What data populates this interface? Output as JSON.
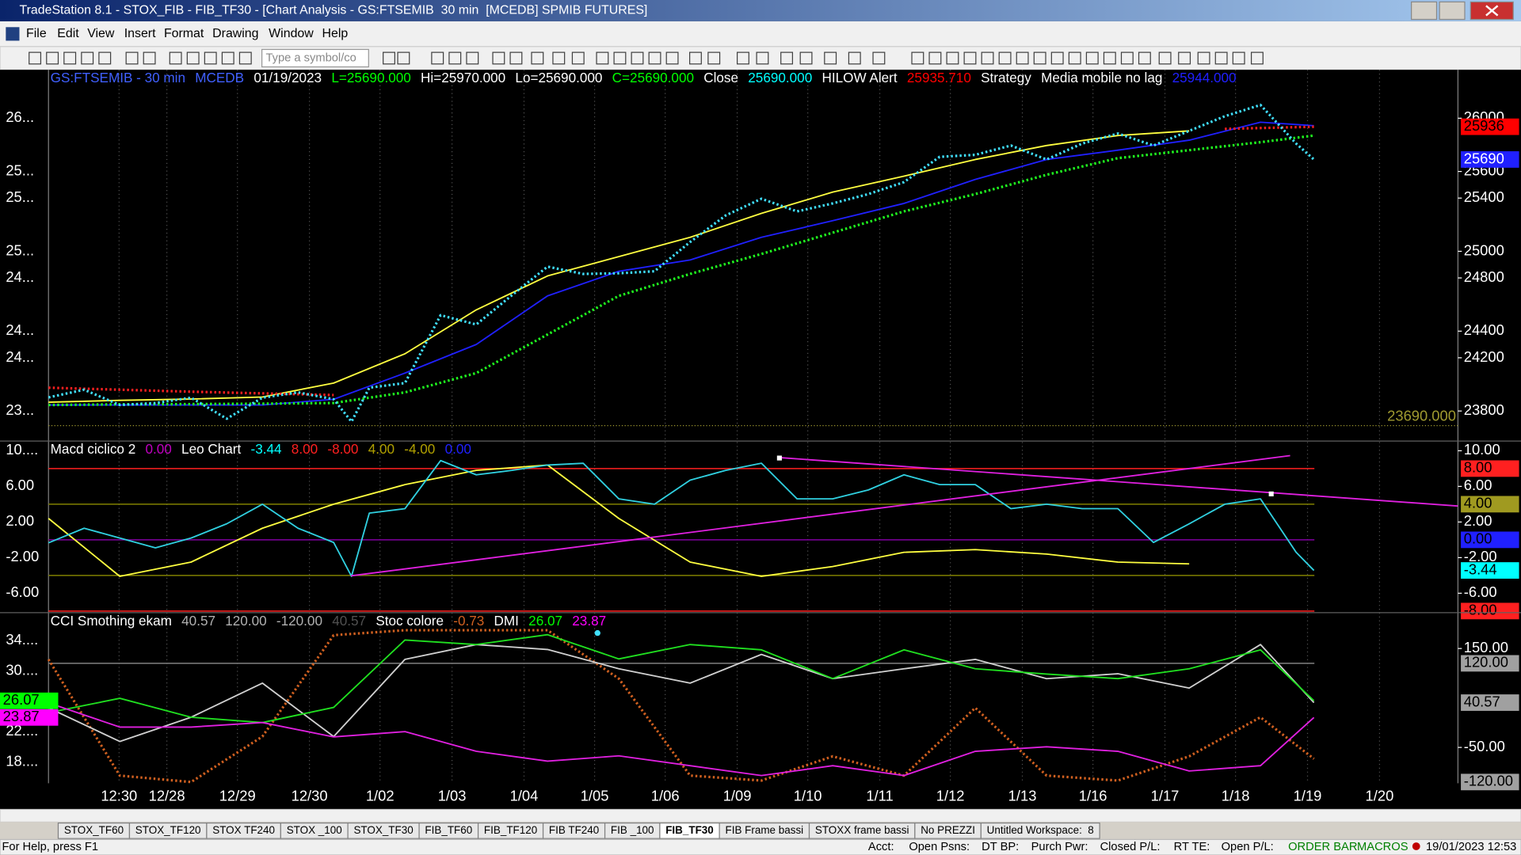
{
  "window": {
    "title": "TradeStation 8.1 - STOX_FIB - FIB_TF30 - [Chart Analysis - GS:FTSEMIB  30 min  [MCEDB] SPMIB FUTURES]",
    "menu": [
      "File",
      "Edit",
      "View",
      "Insert",
      "Format",
      "Drawing",
      "Window",
      "Help"
    ],
    "symbol_box": "Type a symbol/co"
  },
  "chart_data": [
    {
      "type": "line",
      "header": [
        {
          "text": "GS:FTSEMIB - 30 min",
          "color": "#4060ff"
        },
        {
          "text": "MCEDB",
          "color": "#4060ff"
        },
        {
          "text": "01/19/2023",
          "color": "#ffffff"
        },
        {
          "text": "L=25690.000",
          "color": "#00ff00"
        },
        {
          "text": "Hi=25970.000",
          "color": "#ffffff"
        },
        {
          "text": "Lo=25690.000",
          "color": "#ffffff"
        },
        {
          "text": "C=25690.000",
          "color": "#00ff00"
        },
        {
          "text": "Close",
          "color": "#ffffff"
        },
        {
          "text": "25690.000",
          "color": "#00ffff"
        },
        {
          "text": "HILOW Alert",
          "color": "#ffffff"
        },
        {
          "text": "25935.710",
          "color": "#ff0000"
        },
        {
          "text": "Strategy",
          "color": "#ffffff"
        },
        {
          "text": "Media mobile no lag",
          "color": "#ffffff"
        },
        {
          "text": "25944.000",
          "color": "#2020ff"
        }
      ],
      "ylim": [
        23574,
        26364
      ],
      "yticks": [
        26000,
        25600,
        25400,
        25000,
        24800,
        24400,
        24200,
        23800
      ],
      "left_ticks": [
        {
          "value": 26000,
          "label": "26..."
        },
        {
          "value": 25600,
          "label": "25..."
        },
        {
          "value": 25400,
          "label": "25..."
        },
        {
          "value": 25000,
          "label": "25..."
        },
        {
          "value": 24800,
          "label": "24..."
        },
        {
          "value": 24400,
          "label": "24..."
        },
        {
          "value": 24200,
          "label": "24..."
        },
        {
          "value": 23800,
          "label": "23..."
        }
      ],
      "boxes": [
        {
          "value": 25936,
          "label": "25936",
          "color": "#ff0000",
          "text_color": "#000000"
        },
        {
          "value": 25690,
          "label": "25690",
          "color": "#2020ff",
          "text_color": "#ffffff"
        }
      ],
      "low_line": {
        "value": 23690,
        "label": "23690.000",
        "color": "#a09a30"
      },
      "series": [
        {
          "color": "#ffff40",
          "style": "line",
          "x": [
            0,
            1,
            2,
            3,
            4,
            5,
            6,
            7,
            8,
            9,
            10,
            11,
            12,
            13,
            14,
            15,
            16
          ],
          "values": [
            23866,
            23880,
            23890,
            23905,
            24010,
            24230,
            24560,
            24815,
            24960,
            25105,
            25285,
            25445,
            25565,
            25690,
            25795,
            25870,
            25905
          ]
        },
        {
          "color": "#2020ff",
          "style": "line",
          "x": [
            0,
            1,
            2,
            3,
            4,
            5,
            6,
            7,
            8,
            9,
            10,
            11,
            12,
            13,
            14,
            15,
            16,
            17,
            17.75
          ],
          "values": [
            23845,
            23845,
            23845,
            23845,
            23888,
            24085,
            24300,
            24665,
            24850,
            24935,
            25105,
            25230,
            25360,
            25540,
            25690,
            25760,
            25835,
            25970,
            25944
          ]
        },
        {
          "color": "#20ff20",
          "style": "dots",
          "x": [
            0,
            1,
            2,
            3,
            4,
            5,
            6,
            7,
            8,
            9,
            10,
            11,
            12,
            13,
            14,
            15,
            16,
            17,
            17.75
          ],
          "values": [
            23845,
            23850,
            23852,
            23855,
            23860,
            23940,
            24085,
            24375,
            24665,
            24830,
            24980,
            25140,
            25300,
            25430,
            25575,
            25700,
            25760,
            25820,
            25870
          ]
        },
        {
          "color": "#ff2020",
          "style": "dots",
          "x": [
            0,
            2,
            4,
            4.1,
            16.5,
            17.75
          ],
          "values": [
            23975,
            23945,
            23920,
            null,
            25920,
            25936
          ]
        },
        {
          "color": "#40e0ff",
          "style": "dots",
          "x": [
            0,
            0.5,
            1,
            1.5,
            2,
            2.5,
            3,
            3.5,
            4,
            4.25,
            4.5,
            5,
            5.5,
            6,
            6.5,
            7,
            7.5,
            8,
            8.5,
            9,
            9.5,
            10,
            10.5,
            11,
            11.5,
            12,
            12.5,
            13,
            13.5,
            14,
            14.5,
            15,
            15.5,
            16,
            16.5,
            17,
            17.5,
            17.75
          ],
          "values": [
            23902,
            23960,
            23845,
            23860,
            23900,
            23742,
            23900,
            23940,
            23888,
            23720,
            23975,
            24010,
            24520,
            24450,
            24670,
            24885,
            24830,
            24835,
            24850,
            25070,
            25270,
            25395,
            25300,
            25360,
            25430,
            25520,
            25710,
            25725,
            25795,
            25690,
            25810,
            25885,
            25795,
            25905,
            26015,
            26100,
            25810,
            25690
          ]
        }
      ]
    },
    {
      "type": "line",
      "header": [
        {
          "text": "Macd ciclico 2",
          "color": "#ffffff"
        },
        {
          "text": "0.00",
          "color": "#c000c0"
        },
        {
          "text": "Leo Chart",
          "color": "#ffffff"
        },
        {
          "text": "-3.44",
          "color": "#00ffff"
        },
        {
          "text": "8.00",
          "color": "#ff2020"
        },
        {
          "text": "-8.00",
          "color": "#ff2020"
        },
        {
          "text": "4.00",
          "color": "#b0a000"
        },
        {
          "text": "-4.00",
          "color": "#b0a000"
        },
        {
          "text": "0.00",
          "color": "#2020ff"
        }
      ],
      "ylim": [
        -8.18,
        11.09
      ],
      "yticks": [
        {
          "value": 10,
          "label": "10.00"
        },
        {
          "value": 6,
          "label": "6.00"
        },
        {
          "value": 2,
          "label": "2.00"
        },
        {
          "value": -2,
          "label": "-2.00"
        },
        {
          "value": -6,
          "label": "-6.00"
        }
      ],
      "left_ticks": [
        {
          "value": 10,
          "label": "10...."
        },
        {
          "value": 6,
          "label": "6.00"
        },
        {
          "value": 2,
          "label": "2.00"
        },
        {
          "value": -2,
          "label": "-2.00"
        },
        {
          "value": -6,
          "label": "-6.00"
        }
      ],
      "levels": [
        {
          "value": 8,
          "color": "#ff2020"
        },
        {
          "value": 4,
          "color": "#808000"
        },
        {
          "value": 0,
          "color": "#8000a0"
        },
        {
          "value": -4,
          "color": "#808000"
        },
        {
          "value": -8,
          "color": "#ff2020"
        }
      ],
      "boxes": [
        {
          "value": 8,
          "label": "8.00",
          "color": "#ff2020",
          "text_color": "#000000"
        },
        {
          "value": 4,
          "label": "4.00",
          "color": "#a09a20",
          "text_color": "#000000"
        },
        {
          "value": 0,
          "label": "0.00",
          "color": "#2020ff",
          "text_color": "#000000"
        },
        {
          "value": -3.44,
          "label": "-3.44",
          "color": "#00ffff",
          "text_color": "#000000"
        },
        {
          "value": -8,
          "label": "-8.00",
          "color": "#ff2020",
          "text_color": "#000000"
        }
      ],
      "series": [
        {
          "color": "#ffff40",
          "style": "line",
          "x": [
            0,
            1,
            2,
            3,
            4,
            5,
            6,
            7,
            8,
            9,
            10,
            11,
            12,
            13,
            14,
            15,
            16
          ],
          "values": [
            2.4,
            -4.1,
            -2.5,
            1.3,
            4.0,
            6.2,
            7.8,
            8.4,
            2.4,
            -2.5,
            -4.1,
            -3.0,
            -1.4,
            -1.1,
            -1.6,
            -2.5,
            -2.7
          ]
        },
        {
          "color": "#30d0e0",
          "style": "line",
          "x": [
            0,
            0.5,
            1,
            1.5,
            2,
            2.5,
            3,
            3.5,
            4,
            4.25,
            4.5,
            5,
            5.5,
            6,
            6.5,
            7,
            7.5,
            8,
            8.5,
            9,
            9.5,
            10,
            10.5,
            11,
            11.5,
            12,
            12.5,
            13,
            13.5,
            14,
            14.5,
            15,
            15.5,
            16,
            16.5,
            17,
            17.5,
            17.75
          ],
          "values": [
            -0.34,
            1.3,
            0.2,
            -0.9,
            0.2,
            1.8,
            4.0,
            1.3,
            -0.3,
            -4.1,
            3.0,
            3.5,
            8.9,
            7.3,
            7.8,
            8.4,
            8.6,
            4.6,
            4.0,
            6.7,
            7.8,
            8.6,
            4.6,
            4.6,
            5.6,
            7.3,
            6.2,
            6.2,
            3.5,
            4.0,
            3.5,
            3.5,
            -0.3,
            1.8,
            4.0,
            4.6,
            -1.4,
            -3.44
          ]
        }
      ]
    },
    {
      "type": "line",
      "header": [
        {
          "text": "CCI Smothing ekam",
          "color": "#ffffff"
        },
        {
          "text": "40.57",
          "color": "#b0b0b0"
        },
        {
          "text": "120.00",
          "color": "#b0b0b0"
        },
        {
          "text": "-120.00",
          "color": "#b0b0b0"
        },
        {
          "text": "40.57",
          "color": "#505050"
        },
        {
          "text": "Stoc colore",
          "color": "#ffffff"
        },
        {
          "text": "-0.73",
          "color": "#d06020"
        },
        {
          "text": "DMI",
          "color": "#ffffff"
        },
        {
          "text": "26.07",
          "color": "#00ff00"
        },
        {
          "text": "23.87",
          "color": "#ff00ff"
        }
      ],
      "ylim": [
        -122.5,
        222.5
      ],
      "yticks": [
        {
          "value": 150,
          "label": "150.00"
        },
        {
          "value": -50,
          "label": "-50.00"
        }
      ],
      "y2lim": [
        15.18,
        37.71
      ],
      "left_ticks": [
        {
          "value": 34,
          "label": "34...."
        },
        {
          "value": 30,
          "label": "30...."
        },
        {
          "value": 22,
          "label": "22...."
        },
        {
          "value": 18,
          "label": "18...."
        }
      ],
      "levels": [
        {
          "value": 120,
          "color": "#808080"
        }
      ],
      "boxes": [
        {
          "value": 120,
          "label": "120.00",
          "color": "#a0a0a0",
          "text_color": "#000000"
        },
        {
          "value": 40.57,
          "label": "40.57",
          "color": "#a0a0a0",
          "text_color": "#000000"
        },
        {
          "value": -120,
          "label": "-120.00",
          "color": "#a0a0a0",
          "text_color": "#000000"
        }
      ],
      "left_boxes": [
        {
          "value": 26.07,
          "label": "26.07",
          "color": "#00ff00",
          "text_color": "#000000"
        },
        {
          "value": 23.87,
          "label": "23.87",
          "color": "#ff00ff",
          "text_color": "#000000"
        }
      ],
      "series": [
        {
          "color": "#d06020",
          "style": "dots",
          "x": [
            0,
            1,
            2,
            3,
            4,
            5,
            6,
            7,
            8,
            9,
            10,
            11,
            12,
            13,
            14,
            15,
            16,
            17,
            17.75
          ],
          "values": [
            128,
            -107,
            -120,
            -28,
            177,
            187,
            187,
            187,
            89,
            -107,
            -117,
            -68,
            -107,
            30,
            -107,
            -117,
            -68,
            11,
            -73
          ]
        },
        {
          "color": "#d0d0d0",
          "style": "line",
          "x": [
            0,
            1,
            2,
            3,
            4,
            5,
            6,
            7,
            8,
            9,
            10,
            11,
            12,
            13,
            14,
            15,
            16,
            17,
            17.75
          ],
          "values": [
            30,
            -38,
            11,
            80,
            -28,
            128,
            158,
            148,
            109,
            80,
            138,
            89,
            109,
            128,
            89,
            99,
            70,
            158,
            40.57
          ]
        },
        {
          "color": "#20e020",
          "style": "line",
          "axis": "y2",
          "x": [
            0,
            1,
            2,
            3,
            4,
            5,
            6,
            7,
            8,
            9,
            10,
            11,
            12,
            13,
            14,
            15,
            16,
            17,
            17.75
          ],
          "values": [
            24.5,
            26.4,
            23.9,
            23.2,
            25.2,
            34.1,
            33.5,
            34.8,
            31.6,
            33.5,
            32.8,
            29.0,
            32.8,
            30.3,
            29.6,
            29.0,
            30.3,
            32.8,
            26.07
          ]
        },
        {
          "color": "#e020e0",
          "style": "line",
          "axis": "y2",
          "x": [
            0,
            1,
            2,
            3,
            4,
            5,
            6,
            7,
            8,
            9,
            10,
            11,
            12,
            13,
            14,
            15,
            16,
            17,
            17.75
          ],
          "values": [
            25.8,
            22.6,
            22.6,
            23.2,
            21.3,
            22.0,
            19.4,
            18.1,
            18.8,
            17.5,
            16.2,
            17.5,
            16.2,
            19.4,
            20.0,
            19.4,
            16.8,
            17.5,
            23.87
          ]
        }
      ],
      "xlim": [
        0,
        19.77
      ],
      "xticks": [
        {
          "value": 0.99,
          "label": "12:30"
        },
        {
          "value": 1.66,
          "label": "12/28"
        },
        {
          "value": 2.65,
          "label": "12/29"
        },
        {
          "value": 3.66,
          "label": "12/30"
        },
        {
          "value": 4.65,
          "label": "1/02"
        },
        {
          "value": 5.66,
          "label": "1/03"
        },
        {
          "value": 6.67,
          "label": "1/04"
        },
        {
          "value": 7.66,
          "label": "1/05"
        },
        {
          "value": 8.65,
          "label": "1/06"
        },
        {
          "value": 9.66,
          "label": "1/09"
        },
        {
          "value": 10.65,
          "label": "1/10"
        },
        {
          "value": 11.66,
          "label": "1/11"
        },
        {
          "value": 12.65,
          "label": "1/12"
        },
        {
          "value": 13.66,
          "label": "1/13"
        },
        {
          "value": 14.65,
          "label": "1/16"
        },
        {
          "value": 15.66,
          "label": "1/17"
        },
        {
          "value": 16.65,
          "label": "1/18"
        },
        {
          "value": 17.66,
          "label": "1/19"
        },
        {
          "value": 18.67,
          "label": "1/20"
        }
      ],
      "grid": true
    }
  ],
  "tabs": [
    "STOX_TF60",
    "STOX_TF120",
    "STOX TF240",
    "STOX _100",
    "STOX_TF30",
    "FIB_TF60",
    "FIB_TF120",
    "FIB TF240",
    "FIB _100",
    "FIB_TF30",
    "FIB Frame bassi",
    "STOXX frame bassi",
    "No PREZZI",
    "Untitled Workspace:  8"
  ],
  "active_tab": 9,
  "status": [
    "For Help, press F1",
    "Acct:",
    "Open Psns:",
    "DT BP:",
    "Purch Pwr:",
    "Closed P/L:",
    "RT TE:",
    "Open P/L:",
    "ORDER BAR",
    "MACROS",
    "19/01/2023 12:53"
  ]
}
